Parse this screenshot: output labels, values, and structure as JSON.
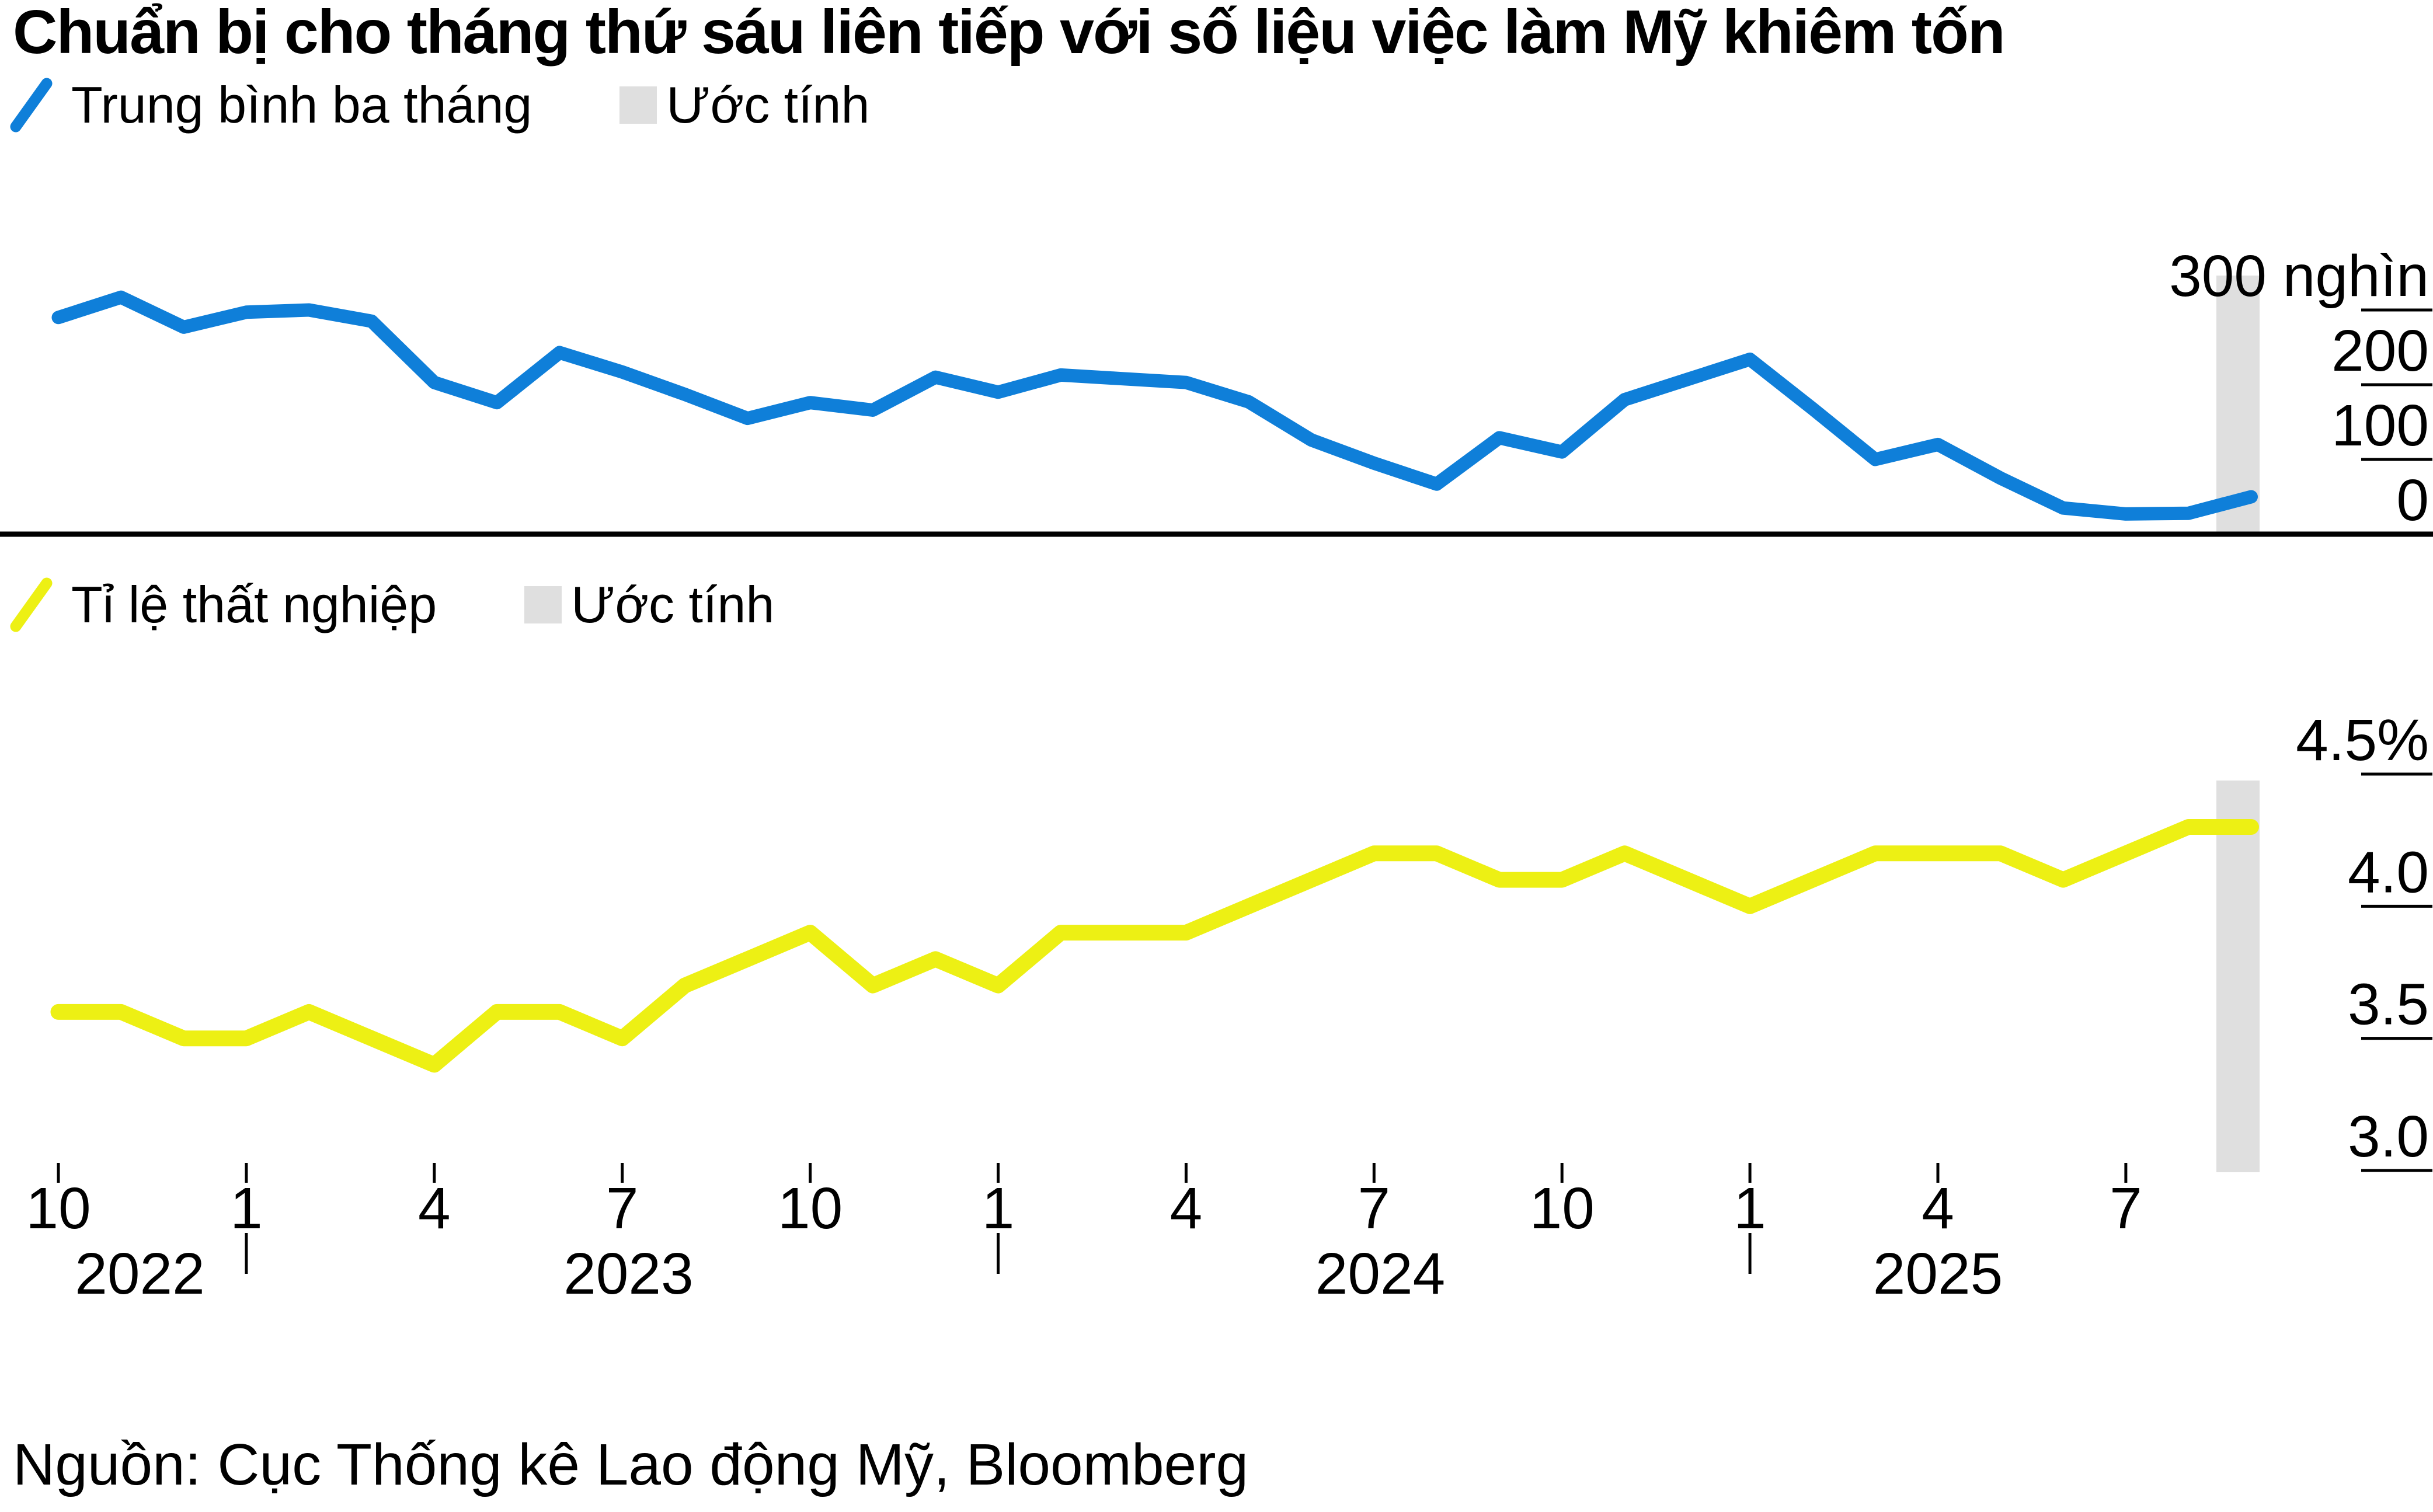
{
  "title": "Chuẩn bị cho tháng thứ sáu liên tiếp với số liệu việc làm Mỹ khiêm tốn",
  "source": "Nguồn: Cục Thống kê Lao động Mỹ, Bloomberg",
  "colors": {
    "blue_line": "#0f7fd9",
    "yellow_line": "#edf014",
    "estimate_bar": "#dfdfdf",
    "text": "#000000",
    "background": "#ffffff"
  },
  "legends": {
    "top": {
      "series_label": "Trung bình ba tháng",
      "estimate_label": "Ước tính"
    },
    "bottom": {
      "series_label": "Tỉ lệ thất nghiệp",
      "estimate_label": "Ước tính"
    }
  },
  "x_axis": {
    "ticks": [
      {
        "month_index": 0,
        "label": "10"
      },
      {
        "month_index": 3,
        "label": "1",
        "year_divider": true
      },
      {
        "month_index": 6,
        "label": "4"
      },
      {
        "month_index": 9,
        "label": "7"
      },
      {
        "month_index": 12,
        "label": "10"
      },
      {
        "month_index": 15,
        "label": "1",
        "year_divider": true
      },
      {
        "month_index": 18,
        "label": "4"
      },
      {
        "month_index": 21,
        "label": "7"
      },
      {
        "month_index": 24,
        "label": "10"
      },
      {
        "month_index": 27,
        "label": "1",
        "year_divider": true
      },
      {
        "month_index": 30,
        "label": "4"
      },
      {
        "month_index": 33,
        "label": "7"
      }
    ],
    "years": [
      {
        "label": "2022",
        "center_month_index": 1.3
      },
      {
        "label": "2023",
        "center_month_index": 9.1
      },
      {
        "label": "2024",
        "center_month_index": 21.1
      },
      {
        "label": "2025",
        "center_month_index": 30.0
      }
    ]
  },
  "chart_data": [
    {
      "type": "line",
      "name": "Trung bình ba tháng",
      "unit": "nghìn việc làm (thousands of jobs)",
      "color": "#0f7fd9",
      "estimate_last_point": true,
      "x_months": [
        "2022-10",
        "2022-11",
        "2022-12",
        "2023-01",
        "2023-02",
        "2023-03",
        "2023-04",
        "2023-05",
        "2023-06",
        "2023-07",
        "2023-08",
        "2023-09",
        "2023-10",
        "2023-11",
        "2023-12",
        "2024-01",
        "2024-02",
        "2024-03",
        "2024-04",
        "2024-05",
        "2024-06",
        "2024-07",
        "2024-08",
        "2024-09",
        "2024-10",
        "2024-11",
        "2024-12",
        "2025-01",
        "2025-02",
        "2025-03",
        "2025-04",
        "2025-05",
        "2025-06",
        "2025-07",
        "2025-08",
        "2025-09"
      ],
      "values": [
        290,
        317,
        277,
        297,
        300,
        285,
        203,
        176,
        243,
        217,
        187,
        155,
        176,
        166,
        210,
        190,
        213,
        208,
        203,
        177,
        126,
        95,
        67,
        129,
        110,
        180,
        207,
        234,
        168,
        100,
        120,
        75,
        35,
        27,
        28,
        50
      ],
      "y_axis": {
        "ylim": [
          0,
          345
        ],
        "ticks": [
          {
            "label": "300 nghìn",
            "value": 300,
            "line": true
          },
          {
            "label": "200",
            "value": 200,
            "line": true
          },
          {
            "label": "100",
            "value": 100,
            "line": true
          },
          {
            "label": "0",
            "value": 0,
            "line": false
          }
        ]
      }
    },
    {
      "type": "line",
      "name": "Tỉ lệ thất nghiệp",
      "unit": "%",
      "color": "#edf014",
      "estimate_last_point": true,
      "x_months": [
        "2022-10",
        "2022-11",
        "2022-12",
        "2023-01",
        "2023-02",
        "2023-03",
        "2023-04",
        "2023-05",
        "2023-06",
        "2023-07",
        "2023-08",
        "2023-09",
        "2023-10",
        "2023-11",
        "2023-12",
        "2024-01",
        "2024-02",
        "2024-03",
        "2024-04",
        "2024-05",
        "2024-06",
        "2024-07",
        "2024-08",
        "2024-09",
        "2024-10",
        "2024-11",
        "2024-12",
        "2025-01",
        "2025-02",
        "2025-03",
        "2025-04",
        "2025-05",
        "2025-06",
        "2025-07",
        "2025-08",
        "2025-09"
      ],
      "values": [
        3.6,
        3.6,
        3.5,
        3.5,
        3.6,
        3.5,
        3.4,
        3.6,
        3.6,
        3.5,
        3.7,
        3.8,
        3.9,
        3.7,
        3.8,
        3.7,
        3.9,
        3.9,
        3.9,
        4.0,
        4.1,
        4.2,
        4.2,
        4.1,
        4.1,
        4.2,
        4.1,
        4.0,
        4.1,
        4.2,
        4.2,
        4.2,
        4.1,
        4.2,
        4.3,
        4.3
      ],
      "y_axis": {
        "ylim": [
          2.95,
          4.6
        ],
        "ticks": [
          {
            "label": "4.5%",
            "value": 4.5,
            "line": true
          },
          {
            "label": "4.0",
            "value": 4.0,
            "line": true
          },
          {
            "label": "3.5",
            "value": 3.5,
            "line": true
          },
          {
            "label": "3.0",
            "value": 3.0,
            "line": true
          }
        ]
      }
    }
  ]
}
